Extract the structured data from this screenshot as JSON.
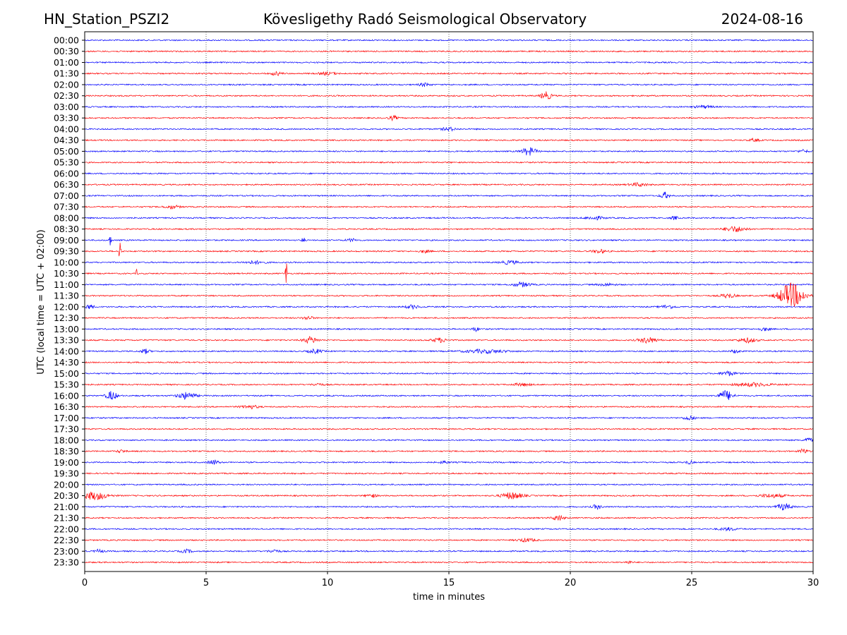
{
  "header": {
    "station": "HN_Station_PSZI2",
    "title": "Kövesligethy Radó Seismological Observatory",
    "date": "2024-08-16"
  },
  "chart_data": {
    "type": "line",
    "subtype": "helicorder",
    "xlabel": "time in minutes",
    "ylabel": "UTC (local time = UTC + 02:00)",
    "xlim": [
      0,
      30
    ],
    "xticks": [
      "0",
      "5",
      "10",
      "15",
      "20",
      "25",
      "30"
    ],
    "grid": "vertical dotted at 5-minute ticks",
    "row_colors": [
      "#0000ff",
      "#ff0000"
    ],
    "rows": [
      "00:00",
      "00:30",
      "01:00",
      "01:30",
      "02:00",
      "02:30",
      "03:00",
      "03:30",
      "04:00",
      "04:30",
      "05:00",
      "05:30",
      "06:00",
      "06:30",
      "07:00",
      "07:30",
      "08:00",
      "08:30",
      "09:00",
      "09:30",
      "10:00",
      "10:30",
      "11:00",
      "11:30",
      "12:00",
      "12:30",
      "13:00",
      "13:30",
      "14:00",
      "14:30",
      "15:00",
      "15:30",
      "16:00",
      "16:30",
      "17:00",
      "17:30",
      "18:00",
      "18:30",
      "19:00",
      "19:30",
      "20:00",
      "20:30",
      "21:00",
      "21:30",
      "22:00",
      "22:30",
      "23:00",
      "23:30"
    ],
    "events_note": "row index, minute, relative amplitude (in row spacings), duration in minutes",
    "events": [
      [
        3,
        7.9,
        0.15,
        0.6
      ],
      [
        3,
        10.0,
        0.12,
        1.0
      ],
      [
        4,
        14.0,
        0.15,
        0.6
      ],
      [
        5,
        19.0,
        0.35,
        0.6
      ],
      [
        6,
        25.5,
        0.12,
        1.0
      ],
      [
        7,
        12.7,
        0.18,
        0.5
      ],
      [
        8,
        15.0,
        0.15,
        0.8
      ],
      [
        9,
        27.6,
        0.12,
        0.6
      ],
      [
        10,
        18.3,
        0.35,
        0.8
      ],
      [
        10,
        29.6,
        0.12,
        0.6
      ],
      [
        13,
        22.8,
        0.15,
        1.0
      ],
      [
        14,
        23.9,
        0.3,
        0.5
      ],
      [
        15,
        3.6,
        0.15,
        0.8
      ],
      [
        16,
        21.0,
        0.15,
        1.0
      ],
      [
        16,
        24.3,
        0.15,
        0.4
      ],
      [
        17,
        26.8,
        0.25,
        1.2
      ],
      [
        18,
        1.05,
        0.5,
        0.12
      ],
      [
        18,
        9.0,
        0.6,
        0.12
      ],
      [
        18,
        11.0,
        0.12,
        0.6
      ],
      [
        19,
        1.45,
        1.5,
        0.1
      ],
      [
        19,
        14.0,
        0.12,
        0.6
      ],
      [
        19,
        21.2,
        0.15,
        0.8
      ],
      [
        20,
        7.0,
        0.12,
        1.2
      ],
      [
        20,
        17.5,
        0.15,
        1.0
      ],
      [
        21,
        2.15,
        0.45,
        0.1
      ],
      [
        21,
        8.3,
        1.3,
        0.1
      ],
      [
        22,
        18.0,
        0.2,
        1.0
      ],
      [
        22,
        21.5,
        0.1,
        1.0
      ],
      [
        23,
        26.5,
        0.2,
        0.8
      ],
      [
        23,
        29.1,
        1.1,
        1.4
      ],
      [
        24,
        0.2,
        0.2,
        0.5
      ],
      [
        24,
        13.5,
        0.15,
        0.8
      ],
      [
        24,
        24.0,
        0.15,
        0.8
      ],
      [
        25,
        9.2,
        0.15,
        0.6
      ],
      [
        26,
        16.1,
        0.18,
        0.4
      ],
      [
        26,
        28.0,
        0.15,
        0.6
      ],
      [
        27,
        9.3,
        0.28,
        0.8
      ],
      [
        27,
        14.6,
        0.2,
        0.8
      ],
      [
        27,
        23.2,
        0.25,
        1.0
      ],
      [
        27,
        27.3,
        0.2,
        1.0
      ],
      [
        28,
        2.5,
        0.2,
        0.5
      ],
      [
        28,
        9.5,
        0.18,
        0.8
      ],
      [
        28,
        16.5,
        0.15,
        2.5
      ],
      [
        28,
        26.8,
        0.15,
        0.5
      ],
      [
        30,
        26.5,
        0.2,
        0.8
      ],
      [
        31,
        9.6,
        0.12,
        0.6
      ],
      [
        31,
        18.0,
        0.12,
        1.0
      ],
      [
        31,
        27.5,
        0.15,
        2.0
      ],
      [
        32,
        1.1,
        0.4,
        0.6
      ],
      [
        32,
        4.2,
        0.3,
        1.0
      ],
      [
        32,
        26.4,
        0.45,
        0.8
      ],
      [
        33,
        6.8,
        0.15,
        1.0
      ],
      [
        34,
        24.9,
        0.2,
        0.6
      ],
      [
        36,
        29.8,
        0.2,
        0.5
      ],
      [
        37,
        29.6,
        0.2,
        0.5
      ],
      [
        37,
        1.5,
        0.12,
        0.5
      ],
      [
        38,
        5.3,
        0.2,
        0.6
      ],
      [
        38,
        14.8,
        0.15,
        0.4
      ],
      [
        38,
        24.9,
        0.15,
        0.4
      ],
      [
        41,
        0.4,
        0.35,
        1.5
      ],
      [
        41,
        11.8,
        0.15,
        0.6
      ],
      [
        41,
        17.6,
        0.3,
        1.2
      ],
      [
        41,
        28.3,
        0.15,
        1.5
      ],
      [
        42,
        21.1,
        0.2,
        0.5
      ],
      [
        42,
        28.8,
        0.28,
        0.8
      ],
      [
        43,
        19.5,
        0.25,
        0.6
      ],
      [
        44,
        26.5,
        0.12,
        1.0
      ],
      [
        45,
        18.2,
        0.15,
        1.0
      ],
      [
        46,
        0.6,
        0.15,
        0.5
      ],
      [
        46,
        4.2,
        0.15,
        0.6
      ],
      [
        46,
        7.8,
        0.15,
        0.6
      ],
      [
        47,
        22.4,
        0.12,
        0.4
      ]
    ]
  }
}
